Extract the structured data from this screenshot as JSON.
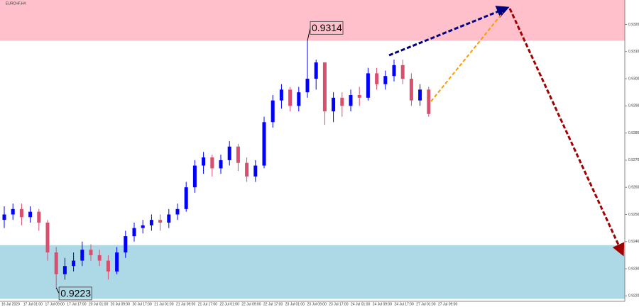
{
  "chart_data": {
    "type": "candlestick",
    "title": "EURCHF,H4",
    "categories": [
      "16 Jul 2020",
      "17 Jul 01:00",
      "17 Jul 09:00",
      "17 Jul 17:00",
      "20 Jul 01:00",
      "20 Jul 09:00",
      "20 Jul 17:00",
      "21 Jul 01:00",
      "21 Jul 09:00",
      "21 Jul 17:00",
      "22 Jul 01:00",
      "22 Jul 09:00",
      "22 Jul 17:00",
      "23 Jul 01:00",
      "23 Jul 09:00",
      "23 Jul 17:00",
      "24 Jul 01:00",
      "24 Jul 09:00",
      "24 Jul 17:00",
      "27 Jul 01:00",
      "27 Jul 09:00"
    ],
    "ohlc": [
      [
        0.9248,
        0.9253,
        0.9245,
        0.925
      ],
      [
        0.925,
        0.9254,
        0.9248,
        0.9252
      ],
      [
        0.9252,
        0.9254,
        0.9246,
        0.9249
      ],
      [
        0.9249,
        0.9253,
        0.9247,
        0.9251
      ],
      [
        0.9251,
        0.9252,
        0.9244,
        0.9247
      ],
      [
        0.9247,
        0.9248,
        0.9233,
        0.9236
      ],
      [
        0.9236,
        0.9238,
        0.9223,
        0.9228
      ],
      [
        0.9228,
        0.9234,
        0.9226,
        0.9231
      ],
      [
        0.9231,
        0.9236,
        0.9229,
        0.9233
      ],
      [
        0.9233,
        0.924,
        0.9231,
        0.9237
      ],
      [
        0.9237,
        0.9239,
        0.9233,
        0.9235
      ],
      [
        0.9235,
        0.9237,
        0.9231,
        0.9233
      ],
      [
        0.9233,
        0.9235,
        0.9226,
        0.9229
      ],
      [
        0.9229,
        0.9238,
        0.9228,
        0.9236
      ],
      [
        0.9236,
        0.9244,
        0.9234,
        0.9242
      ],
      [
        0.9242,
        0.9247,
        0.924,
        0.9245
      ],
      [
        0.9245,
        0.9248,
        0.9243,
        0.9246
      ],
      [
        0.9246,
        0.925,
        0.9244,
        0.9248
      ],
      [
        0.9248,
        0.925,
        0.9244,
        0.9247
      ],
      [
        0.9247,
        0.9252,
        0.9245,
        0.925
      ],
      [
        0.925,
        0.9254,
        0.9248,
        0.9252
      ],
      [
        0.9252,
        0.9262,
        0.9251,
        0.926
      ],
      [
        0.926,
        0.927,
        0.9258,
        0.9268
      ],
      [
        0.9268,
        0.9273,
        0.9265,
        0.9271
      ],
      [
        0.9271,
        0.9272,
        0.9264,
        0.9267
      ],
      [
        0.9267,
        0.9272,
        0.9265,
        0.927
      ],
      [
        0.927,
        0.9277,
        0.9268,
        0.9275
      ],
      [
        0.9275,
        0.9276,
        0.9266,
        0.9269
      ],
      [
        0.9269,
        0.9271,
        0.9262,
        0.9264
      ],
      [
        0.9264,
        0.927,
        0.9262,
        0.9268
      ],
      [
        0.9268,
        0.9286,
        0.9267,
        0.9284
      ],
      [
        0.9284,
        0.9294,
        0.9282,
        0.9292
      ],
      [
        0.9292,
        0.9298,
        0.9289,
        0.9296
      ],
      [
        0.9296,
        0.9297,
        0.9288,
        0.929
      ],
      [
        0.929,
        0.9297,
        0.9288,
        0.9295
      ],
      [
        0.9295,
        0.9314,
        0.9293,
        0.93
      ],
      [
        0.93,
        0.9307,
        0.9296,
        0.9306
      ],
      [
        0.9306,
        0.9306,
        0.9283,
        0.9288
      ],
      [
        0.9288,
        0.9295,
        0.9284,
        0.9293
      ],
      [
        0.9293,
        0.9295,
        0.9286,
        0.929
      ],
      [
        0.929,
        0.9296,
        0.9288,
        0.9294
      ],
      [
        0.9294,
        0.9297,
        0.929,
        0.9293
      ],
      [
        0.9293,
        0.9304,
        0.9292,
        0.9302
      ],
      [
        0.9302,
        0.9304,
        0.9296,
        0.9298
      ],
      [
        0.9298,
        0.9303,
        0.9296,
        0.9301
      ],
      [
        0.9301,
        0.9307,
        0.9299,
        0.9305
      ],
      [
        0.9305,
        0.9307,
        0.9298,
        0.93
      ],
      [
        0.93,
        0.9302,
        0.929,
        0.9292
      ],
      [
        0.9292,
        0.9298,
        0.929,
        0.9296
      ],
      [
        0.9296,
        0.9297,
        0.9286,
        0.9287
      ]
    ],
    "up_color": "#0000ff",
    "down_color": "#d94f6e",
    "ylim": [
      0.9218,
      0.9329
    ],
    "yticks": [
      {
        "value": 0.922,
        "label": "0.9220"
      },
      {
        "value": 0.923,
        "label": "0.9230"
      },
      {
        "value": 0.924,
        "label": "0.9240"
      },
      {
        "value": 0.925,
        "label": "0.9250"
      },
      {
        "value": 0.926,
        "label": "0.9260"
      },
      {
        "value": 0.927,
        "label": "0.9270"
      },
      {
        "value": 0.928,
        "label": "0.9280"
      },
      {
        "value": 0.929,
        "label": "0.9290"
      },
      {
        "value": 0.93,
        "label": "0.9300"
      },
      {
        "value": 0.931,
        "label": "0.9310"
      },
      {
        "value": 0.932,
        "label": "0.9320"
      }
    ],
    "zones": [
      {
        "from": 0.9329,
        "to": 0.9314,
        "color": "#ffc0cb"
      },
      {
        "from": 0.92387,
        "to": 0.92189,
        "color": "#add8e6"
      }
    ],
    "annotations": [
      {
        "text": "0.9314",
        "value": 0.9314
      },
      {
        "text": "0.9223",
        "value": 0.9223
      }
    ]
  }
}
